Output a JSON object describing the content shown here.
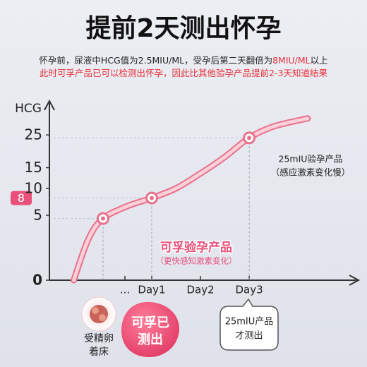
{
  "chart_data": {
    "type": "line",
    "title": "提前2天测出怀孕",
    "subtitle": [
      [
        {
          "text": "怀孕前，尿液中HCG值为2.5MIU/ML，受孕后第二天翻倍为",
          "color": "#222222"
        },
        {
          "text": "8MIU/ML",
          "color": "#e8323c"
        },
        {
          "text": "以上",
          "color": "#222222"
        }
      ],
      [
        {
          "text": "此时可孚产品已可以检测出怀孕，因此比其他验孕产品提前2-3天知道结果",
          "color": "#e8323c"
        }
      ]
    ],
    "y_label": "HCG",
    "yscale": "sqrt",
    "ylim": [
      0,
      36
    ],
    "yticks": [
      0,
      5,
      8,
      10,
      15,
      25
    ],
    "highlight_yticks": [
      8
    ],
    "highlight_color": "#e8507a",
    "xlim": [
      -1.1,
      5.2
    ],
    "xticks": [
      {
        "value": 0.45,
        "label": "..."
      },
      {
        "value": 1,
        "label": "Day1"
      },
      {
        "value": 2,
        "label": "Day2"
      },
      {
        "value": 3,
        "label": "Day3"
      }
    ],
    "series": [
      {
        "color": "#e8718d",
        "x": [
          -0.6,
          -0.3,
          0,
          0.5,
          1,
          1.5,
          2,
          2.5,
          3,
          3.5,
          4.2
        ],
        "values": [
          0,
          2,
          4.5,
          6.5,
          8,
          10,
          13.5,
          18,
          24,
          28,
          31
        ]
      },
      {
        "color": "#e8718d",
        "markers": true,
        "x": [
          0,
          1,
          3
        ],
        "values": [
          4.5,
          8,
          24
        ]
      }
    ],
    "annotations": [
      {
        "lines": [
          "25mIU验孕产品",
          "（感应激素变化慢）"
        ],
        "color": "#222222"
      },
      {
        "lines": [
          "可孚验孕产品",
          "（更快感知激素变化）"
        ],
        "color": "#e8507a"
      }
    ]
  },
  "callouts": [
    {
      "lines": [
        "受精卵",
        "着床"
      ]
    },
    {
      "lines": [
        "可孚已",
        "测出"
      ]
    },
    {
      "lines": [
        "25mIU产品",
        "才测出"
      ]
    }
  ]
}
